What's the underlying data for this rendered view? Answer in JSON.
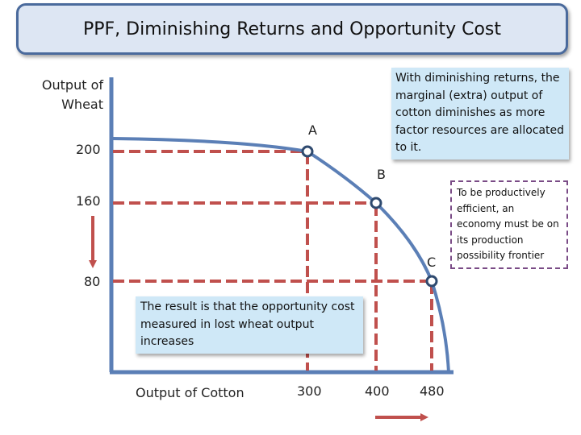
{
  "title": "PPF, Diminishing Returns and Opportunity Cost",
  "axes": {
    "y_label": "Output of Wheat",
    "x_label": "Output of Cotton",
    "y_ticks": [
      "200",
      "160",
      "80"
    ],
    "x_ticks": [
      "300",
      "400",
      "480"
    ]
  },
  "points": [
    {
      "label": "A",
      "cotton": 300,
      "wheat": 200
    },
    {
      "label": "B",
      "cotton": 400,
      "wheat": 160
    },
    {
      "label": "C",
      "cotton": 480,
      "wheat": 80
    }
  ],
  "notes": {
    "diminishing": "With diminishing returns, the marginal (extra) output of cotton diminishes as more factor resources are allocated to it.",
    "efficient": "To be productively efficient, an economy must be on its production possibility frontier",
    "result": "The result is that the opportunity cost measured in lost wheat output increases"
  },
  "colors": {
    "axis": "#5b7fb6",
    "curve": "#5b7fb6",
    "dash": "#c0504d",
    "arrow": "#c0504d",
    "point_stroke": "#2f4a6f"
  }
}
